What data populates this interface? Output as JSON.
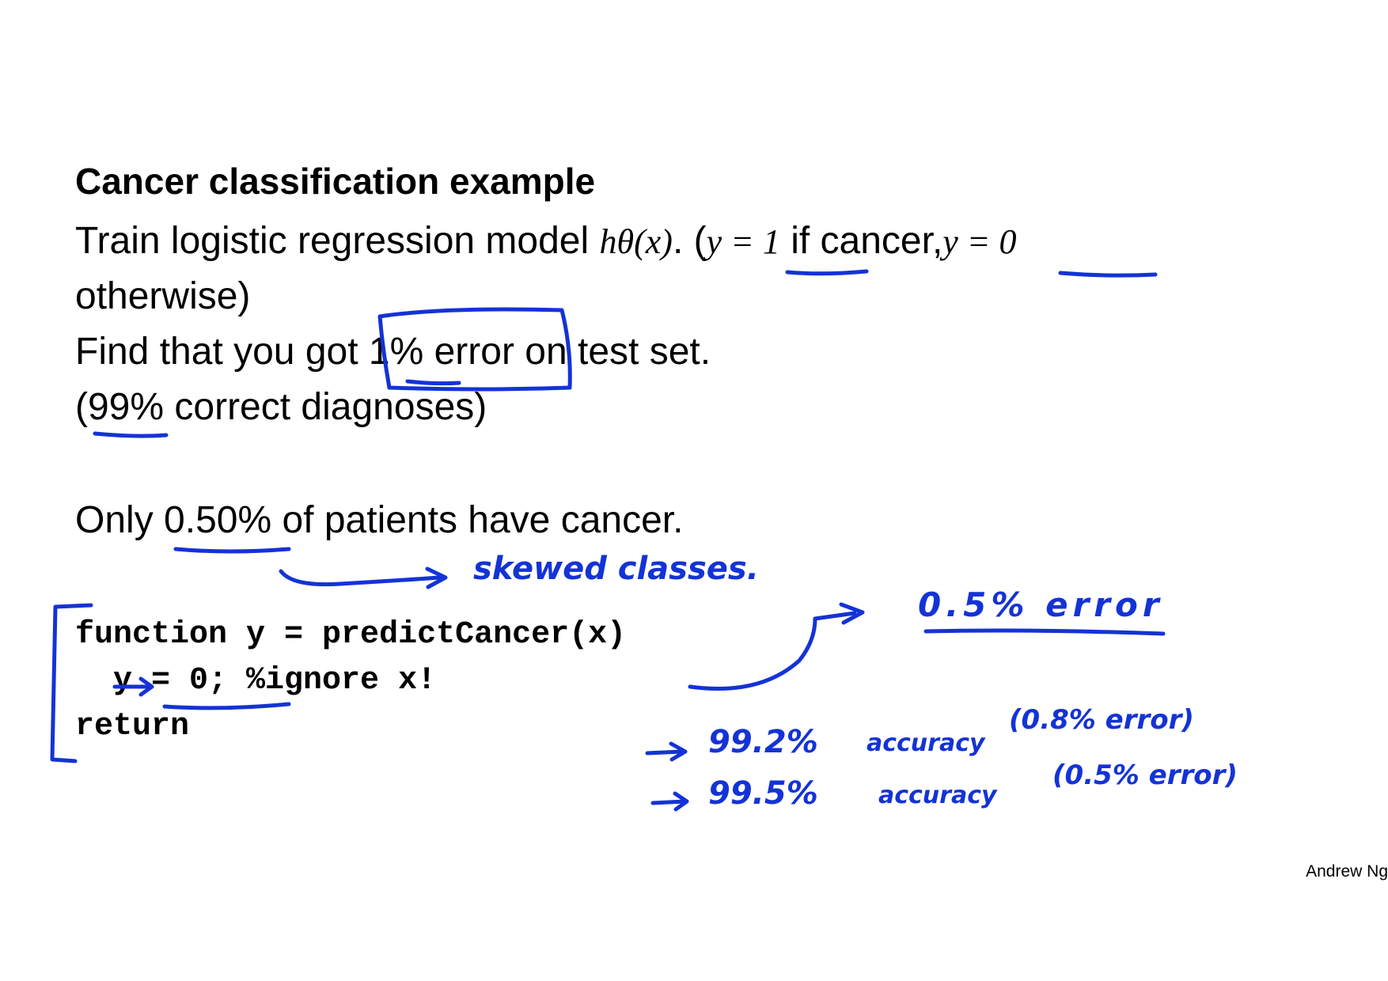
{
  "slide": {
    "title": "Cancer classification example",
    "line1_text": "Train logistic regression model",
    "line1_hypothesis": "hθ(x)",
    "line1_paren": ". (",
    "line1_y1": "y = 1",
    "line1_mid": "if cancer,",
    "line1_y0": "y = 0",
    "line2": "otherwise)",
    "line3": "Find that you got 1% error on test set.",
    "line4": "(99% correct diagnoses)",
    "line5": "Only 0.50% of patients have cancer.",
    "code": {
      "line1": "function y = predictCancer(x)",
      "line2": "  y = 0; %ignore x!",
      "line3": "return"
    },
    "footer": "Andrew Ng"
  },
  "annotations": {
    "skewed": "skewed classes.",
    "error_note": "0.5% error",
    "acc1": "99.2%",
    "acc1_word": "accuracy",
    "acc1_err": "(0.8% error)",
    "acc2": "99.5%",
    "acc2_word": "accuracy",
    "acc2_err": "(0.5% error)"
  },
  "colors": {
    "ink": "#1433d6",
    "text": "#000000"
  }
}
